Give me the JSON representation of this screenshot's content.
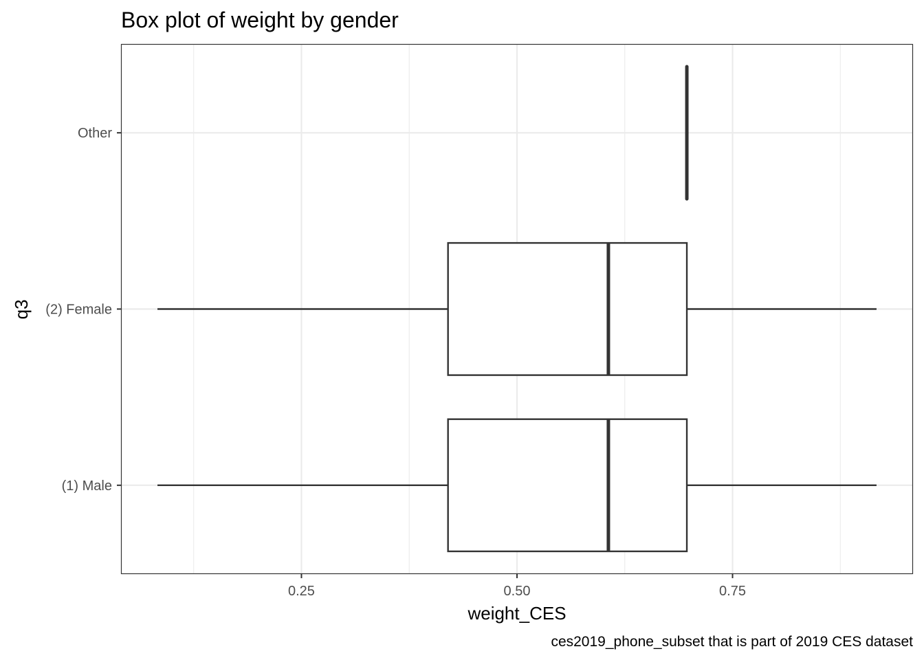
{
  "chart_data": {
    "type": "boxplot",
    "title": "Box plot of weight by gender",
    "xlabel": "weight_CES",
    "ylabel": "q3",
    "caption": "ces2019_phone_subset that is part of 2019 CES dataset",
    "orientation": "horizontal",
    "categories": [
      "(1) Male",
      "(2) Female",
      "Other"
    ],
    "xlim": [
      0.0415,
      0.9585
    ],
    "x_ticks": [
      0.25,
      0.5,
      0.75
    ],
    "x_tick_labels": [
      "0.25",
      "0.50",
      "0.75"
    ],
    "x_minor_ticks": [
      0.125,
      0.375,
      0.625,
      0.875
    ],
    "grid": true,
    "boxes": [
      {
        "category": "(1) Male",
        "whisker_low": 0.083,
        "q1": 0.42,
        "median": 0.606,
        "q3": 0.697,
        "whisker_high": 0.917
      },
      {
        "category": "(2) Female",
        "whisker_low": 0.083,
        "q1": 0.42,
        "median": 0.606,
        "q3": 0.697,
        "whisker_high": 0.917
      },
      {
        "category": "Other",
        "whisker_low": 0.697,
        "q1": 0.697,
        "median": 0.697,
        "q3": 0.697,
        "whisker_high": 0.697
      }
    ],
    "colors": {
      "box_stroke": "#333333",
      "grid": "#ebebeb",
      "panel_border": "#333333",
      "background": "#ffffff"
    }
  }
}
